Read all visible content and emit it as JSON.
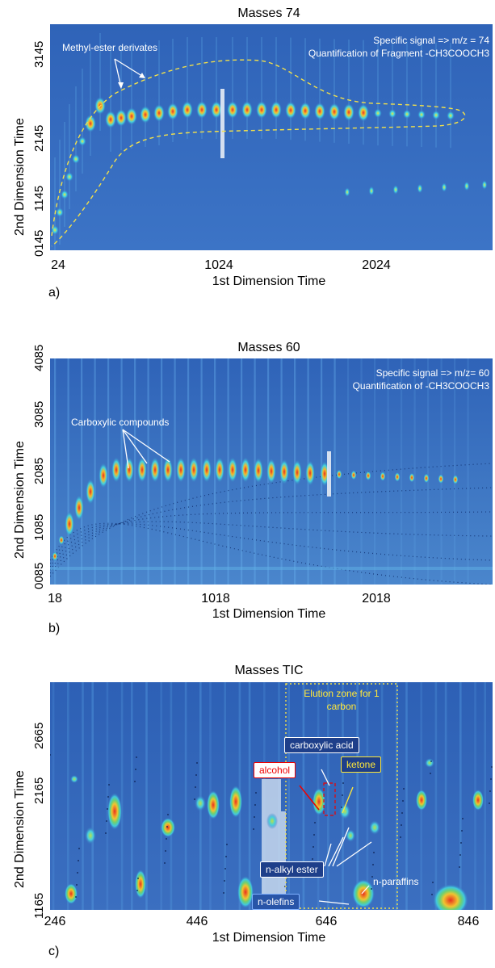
{
  "panels": [
    {
      "id": "a",
      "label": "a)",
      "title": "Masses 74",
      "xlabel": "1st Dimension Time",
      "ylabel": "2nd Dimension Time",
      "xticks": [
        "24",
        "1024",
        "2024"
      ],
      "yticks": [
        "0145",
        "1145",
        "2145",
        "3145"
      ],
      "note_line1": "Specific signal => m/z = 74",
      "note_line2": "Quantification of Fragment -CH3COOCH3",
      "annotation": "Methyl-ester derivates"
    },
    {
      "id": "b",
      "label": "b)",
      "title": "Masses 60",
      "xlabel": "1st Dimension Time",
      "ylabel": "2nd Dimension Time",
      "xticks": [
        "18",
        "1018",
        "2018"
      ],
      "yticks": [
        "0085",
        "1085",
        "2085",
        "3085",
        "4085"
      ],
      "note_line1": "Specific signal => m/z= 60",
      "note_line2": "Quantification of -CH3COOCH3",
      "annotation": "Carboxylic compounds"
    },
    {
      "id": "c",
      "label": "c)",
      "title": "Masses TIC",
      "xlabel": "1st Dimension Time",
      "ylabel": "2nd Dimension Time",
      "xticks": [
        "246",
        "446",
        "646",
        "846"
      ],
      "yticks": [
        "1165",
        "2165",
        "2665"
      ],
      "zone_label": "Elution zone for 1 carbon",
      "labels": {
        "carboxylic_acid": "carboxylic acid",
        "alcohol": "alcohol",
        "ketone": "ketone",
        "n_alkyl_ester": "n-alkyl ester",
        "n_paraffins": "n-paraffins",
        "n_olefins": "n-olefins"
      }
    }
  ],
  "chart_data": [
    {
      "type": "heatmap",
      "title": "Masses 74",
      "xlabel": "1st Dimension Time",
      "ylabel": "2nd Dimension Time",
      "x_ticks": [
        24,
        1024,
        2024
      ],
      "y_ticks": [
        145,
        1145,
        2145,
        3145
      ],
      "annotations": [
        "Methyl-ester derivates",
        "Specific signal => m/z = 74",
        "Quantification of Fragment -CH3COOCH3"
      ]
    },
    {
      "type": "heatmap",
      "title": "Masses 60",
      "xlabel": "1st Dimension Time",
      "ylabel": "2nd Dimension Time",
      "x_ticks": [
        18,
        1018,
        2018
      ],
      "y_ticks": [
        85,
        1085,
        2085,
        3085,
        4085
      ],
      "annotations": [
        "Carboxylic compounds",
        "Specific signal => m/z= 60",
        "Quantification of -CH3COOCH3"
      ]
    },
    {
      "type": "heatmap",
      "title": "Masses TIC",
      "xlabel": "1st Dimension Time",
      "ylabel": "2nd Dimension Time",
      "x_ticks": [
        246,
        446,
        646,
        846
      ],
      "y_ticks": [
        1165,
        2165,
        2665
      ],
      "annotations": [
        "Elution zone for 1 carbon",
        "carboxylic acid",
        "alcohol",
        "ketone",
        "n-alkyl ester",
        "n-paraffins",
        "n-olefins"
      ]
    }
  ]
}
